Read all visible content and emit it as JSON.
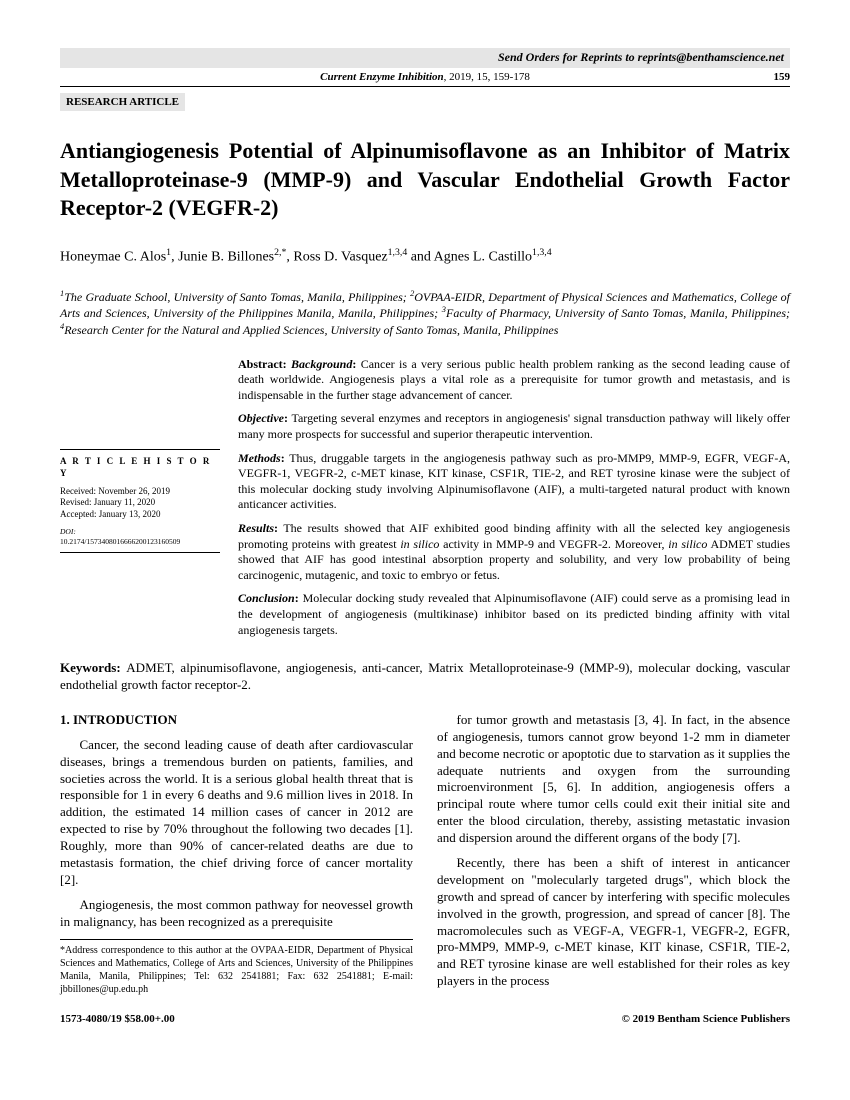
{
  "header": {
    "reprint_notice": "Send Orders for Reprints to reprints@benthamscience.net",
    "journal_line_prefix": "Current Enzyme Inhibition",
    "journal_line_suffix": ", 2019, 15, 159-178",
    "page_number": "159",
    "article_type": "RESEARCH ARTICLE"
  },
  "title": "Antiangiogenesis Potential of Alpinumisoflavone as an Inhibitor of Matrix Metalloproteinase-9 (MMP-9) and Vascular Endothelial Growth Factor Receptor-2 (VEGFR-2)",
  "authors_html": "Honeymae C. Alos<sup>1</sup>, Junie B. Billones<sup>2,*</sup>, Ross D. Vasquez<sup>1,3,4</sup> and Agnes L. Castillo<sup>1,3,4</sup>",
  "affiliations_html": "<sup>1</sup>The Graduate School, University of Santo Tomas, Manila, Philippines; <sup>2</sup>OVPAA-EIDR, Department of Physical Sciences and Mathematics, College of Arts and Sciences, University of the Philippines Manila, Manila, Philippines; <sup>3</sup>Faculty of Pharmacy, University of Santo Tomas, Manila, Philippines; <sup>4</sup>Research Center for the Natural and Applied Sciences, University of Santo Tomas, Manila, Philippines",
  "history": {
    "heading": "A R T I C L E  H I S T O R Y",
    "received": "Received: November 26, 2019",
    "revised": "Revised: January 11, 2020",
    "accepted": "Accepted: January 13, 2020",
    "doi_label": "DOI:",
    "doi": "10.2174/1573408016666200123160509"
  },
  "abstract": {
    "background": "Cancer is a very serious public health problem ranking as the second leading cause of death worldwide. Angiogenesis plays a vital role as a prerequisite for tumor growth and metastasis, and is indispensable in the further stage advancement of cancer.",
    "objective": "Targeting several enzymes and receptors in angiogenesis' signal transduction pathway will likely offer many more prospects for successful and superior therapeutic intervention.",
    "methods": "Thus, druggable targets in the angiogenesis pathway such as pro-MMP9, MMP-9, EGFR, VEGF-A, VEGFR-1, VEGFR-2, c-MET kinase, KIT kinase, CSF1R, TIE-2, and RET tyrosine kinase were the subject of this molecular docking study involving Alpinumisoflavone (AIF), a multi-targeted natural product with known anticancer activities.",
    "results_html": "The results showed that AIF exhibited good binding affinity with all the selected key angiogenesis promoting proteins with greatest <i>in silico</i> activity in MMP-9 and VEGFR-2. Moreover, <i>in silico</i> ADMET studies showed that AIF has good intestinal absorption property and solubility, and very low probability of being carcinogenic, mutagenic, and toxic to embryo or fetus.",
    "conclusion": "Molecular docking study revealed that Alpinumisoflavone (AIF) could serve as a promising lead in the development of angiogenesis (multikinase) inhibitor based on its predicted binding affinity with vital angiogenesis targets."
  },
  "keywords": "ADMET, alpinumisoflavone, angiogenesis, anti-cancer, Matrix Metalloproteinase-9 (MMP-9), molecular docking, vascular endothelial growth factor receptor-2.",
  "body": {
    "section_heading": "1. INTRODUCTION",
    "p1": "Cancer, the second leading cause of death after cardiovascular diseases, brings a tremendous burden on patients, families, and societies across the world. It is a serious global health threat that is responsible for 1 in every 6 deaths and 9.6 million lives in 2018. In addition, the estimated 14 million cases of cancer in 2012 are expected to rise by 70% throughout the following two decades [1]. Roughly, more than 90% of cancer-related deaths are due to metastasis formation, the chief driving force of cancer mortality [2].",
    "p2": "Angiogenesis, the most common pathway for neovessel growth in malignancy, has been recognized as a prerequisite",
    "p3": "for tumor growth and metastasis [3, 4]. In fact, in the absence of angiogenesis, tumors cannot grow beyond 1-2 mm in diameter and become necrotic or apoptotic due to starvation as it supplies the adequate nutrients and oxygen from the surrounding microenvironment [5, 6]. In addition, angiogenesis offers a principal route where tumor cells could exit their initial site and enter the blood circulation, thereby, assisting metastatic invasion and dispersion around the different organs of the body [7].",
    "p4": "Recently, there has been a shift of interest in anticancer development on \"molecularly targeted drugs\", which block the growth and spread of cancer by interfering with specific molecules involved in the growth, progression, and spread of cancer [8]. The macromolecules such as VEGF-A, VEGFR-1, VEGFR-2, EGFR, pro-MMP9, MMP-9, c-MET kinase, KIT kinase, CSF1R, TIE-2, and RET tyrosine kinase are well established for their roles as key players in the process"
  },
  "correspondence": "*Address correspondence to this author at the OVPAA-EIDR, Department of Physical Sciences and Mathematics, College of Arts and Sciences, University of the Philippines Manila, Manila, Philippines; Tel: 632 2541881; Fax: 632 2541881; E-mail: jbbillones@up.edu.ph",
  "footer": {
    "left": "1573-4080/19 $58.00+.00",
    "right": "© 2019 Bentham Science Publishers"
  }
}
